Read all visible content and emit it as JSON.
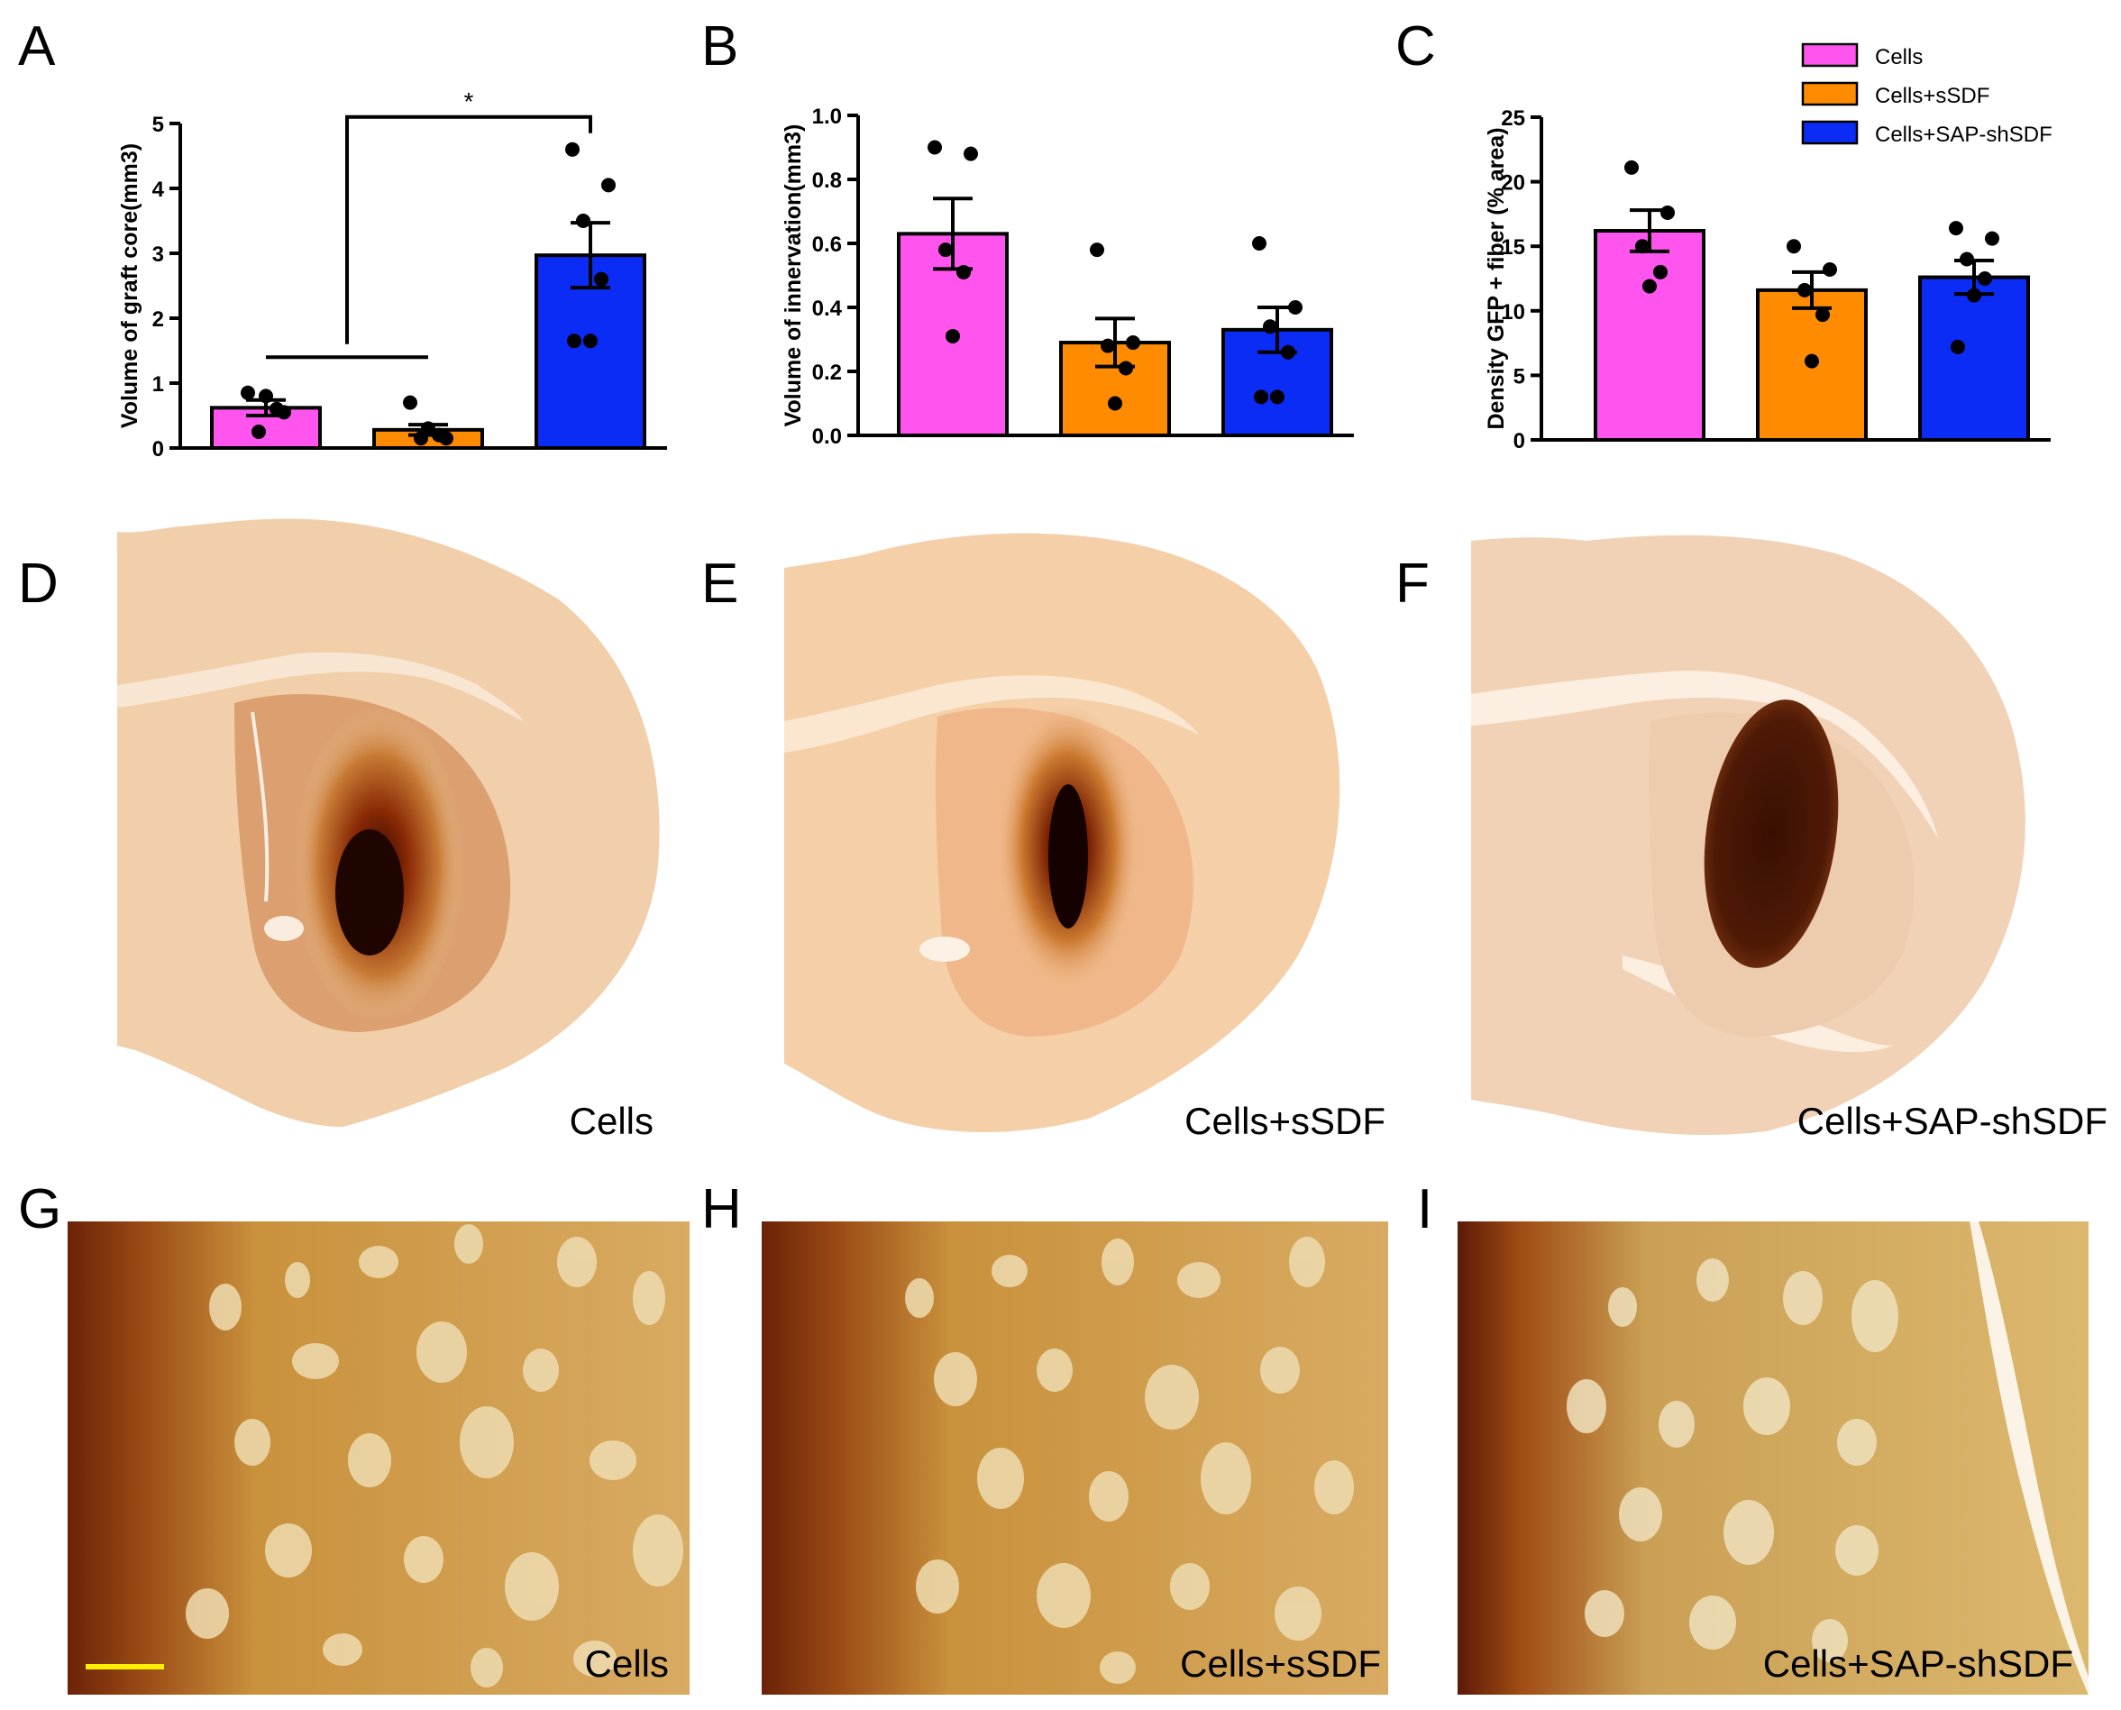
{
  "panel_letters": {
    "a": "A",
    "b": "B",
    "c": "C",
    "d": "D",
    "e": "E",
    "f": "F",
    "g": "G",
    "h": "H",
    "i": "I"
  },
  "colors": {
    "cells": "#ff55ee",
    "cells_ssdf": "#ff8c00",
    "cells_sap_shsdf": "#0a2cf5"
  },
  "legend": {
    "position": "top-right",
    "items": [
      "Cells",
      "Cells+sSDF",
      "Cells+SAP-shSDF"
    ]
  },
  "chart_data": [
    {
      "panel": "A",
      "type": "bar",
      "categories": [
        "Cells",
        "Cells+sSDF",
        "Cells+SAP-shSDF"
      ],
      "values": [
        0.62,
        0.28,
        2.97
      ],
      "errors": [
        0.12,
        0.08,
        0.5
      ],
      "points": [
        [
          0.85,
          0.55,
          0.25,
          0.6,
          0.8
        ],
        [
          0.7,
          0.15,
          0.15,
          0.2,
          0.3
        ],
        [
          4.6,
          4.05,
          3.5,
          2.6,
          1.65,
          1.65
        ]
      ],
      "ylabel": "Volume of graft core(mm3)",
      "ylim": [
        0,
        5
      ],
      "yticks": [
        "0",
        "1",
        "2",
        "3",
        "4",
        "5"
      ],
      "significance": "*"
    },
    {
      "panel": "B",
      "type": "bar",
      "categories": [
        "Cells",
        "Cells+sSDF",
        "Cells+SAP-shSDF"
      ],
      "values": [
        0.63,
        0.29,
        0.33
      ],
      "errors": [
        0.11,
        0.075,
        0.07
      ],
      "points": [
        [
          0.9,
          0.88,
          0.58,
          0.51,
          0.31
        ],
        [
          0.58,
          0.29,
          0.28,
          0.21,
          0.1
        ],
        [
          0.6,
          0.4,
          0.34,
          0.26,
          0.12,
          0.12
        ]
      ],
      "ylabel": "Volume of innervation(mm3)",
      "ylim": [
        0,
        1.0
      ],
      "yticks": [
        "0.0",
        "0.2",
        "0.4",
        "0.6",
        "0.8",
        "1.0"
      ]
    },
    {
      "panel": "C",
      "type": "bar",
      "categories": [
        "Cells",
        "Cells+sSDF",
        "Cells+SAP-shSDF"
      ],
      "values": [
        16.2,
        11.6,
        12.6
      ],
      "errors": [
        1.6,
        1.4,
        1.3
      ],
      "points": [
        [
          21.1,
          17.6,
          15.0,
          13.0,
          11.9
        ],
        [
          15.0,
          13.2,
          11.6,
          9.7,
          6.1
        ],
        [
          16.4,
          15.6,
          14.0,
          12.5,
          11.2,
          7.2
        ]
      ],
      "ylabel": "Density GFP + fiber (% area)",
      "ylim": [
        0,
        25
      ],
      "yticks": [
        "0",
        "5",
        "10",
        "15",
        "20",
        "25"
      ]
    }
  ],
  "image_captions": {
    "d": "Cells",
    "e": "Cells+sSDF",
    "f": "Cells+SAP-shSDF",
    "g": "Cells",
    "h": "Cells+sSDF",
    "i": "Cells+SAP-shSDF"
  },
  "icons": {
    "scale_bar": "scale-bar",
    "brain_section": "brain-section-icon",
    "histology": "histology-texture"
  }
}
